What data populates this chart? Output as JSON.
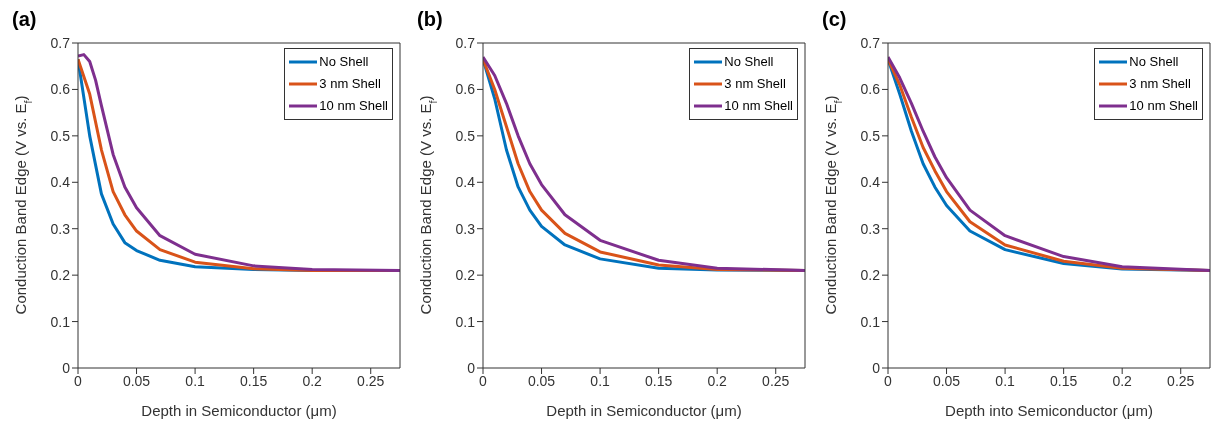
{
  "chart_data": [
    {
      "type": "line",
      "title": "(a)",
      "xlabel": "Depth in Semiconductor (μm)",
      "ylabel": "Conduction Band Edge (V vs. E$_{f}$)",
      "xlim": [
        0,
        0.275
      ],
      "ylim": [
        0,
        0.7
      ],
      "xticks": [
        0,
        0.05,
        0.1,
        0.15,
        0.2,
        0.25
      ],
      "yticks": [
        0,
        0.1,
        0.2,
        0.3,
        0.4,
        0.5,
        0.6,
        0.7
      ],
      "grid": false,
      "legend": "top right",
      "marker": "none",
      "line_style": "solid",
      "series": [
        {
          "name": "No Shell",
          "color": "#0072bd",
          "x": [
            0,
            0.01,
            0.02,
            0.03,
            0.04,
            0.05,
            0.07,
            0.1,
            0.15,
            0.2,
            0.275
          ],
          "values": [
            0.665,
            0.5,
            0.375,
            0.31,
            0.27,
            0.253,
            0.232,
            0.218,
            0.212,
            0.21,
            0.21
          ]
        },
        {
          "name": "3 nm Shell",
          "color": "#d95319",
          "x": [
            0,
            0.01,
            0.02,
            0.03,
            0.04,
            0.05,
            0.07,
            0.1,
            0.15,
            0.2,
            0.275
          ],
          "values": [
            0.665,
            0.59,
            0.47,
            0.38,
            0.33,
            0.295,
            0.255,
            0.228,
            0.214,
            0.21,
            0.21
          ]
        },
        {
          "name": "10 nm Shell",
          "color": "#7e2f8e",
          "x": [
            0,
            0.005,
            0.01,
            0.015,
            0.02,
            0.03,
            0.04,
            0.05,
            0.07,
            0.1,
            0.15,
            0.2,
            0.275
          ],
          "values": [
            0.672,
            0.675,
            0.66,
            0.62,
            0.565,
            0.46,
            0.39,
            0.345,
            0.285,
            0.245,
            0.22,
            0.212,
            0.21
          ]
        }
      ]
    },
    {
      "type": "line",
      "title": "(b)",
      "xlabel": "Depth in Semiconductor (μm)",
      "ylabel": "Conduction Band Edge (V vs. E$_{f}$)",
      "xlim": [
        0,
        0.275
      ],
      "ylim": [
        0,
        0.7
      ],
      "xticks": [
        0,
        0.05,
        0.1,
        0.15,
        0.2,
        0.25
      ],
      "yticks": [
        0,
        0.1,
        0.2,
        0.3,
        0.4,
        0.5,
        0.6,
        0.7
      ],
      "grid": false,
      "legend": "top right",
      "marker": "none",
      "line_style": "solid",
      "series": [
        {
          "name": "No Shell",
          "color": "#0072bd",
          "x": [
            0,
            0.01,
            0.02,
            0.03,
            0.04,
            0.05,
            0.07,
            0.1,
            0.15,
            0.2,
            0.275
          ],
          "values": [
            0.665,
            0.58,
            0.47,
            0.39,
            0.34,
            0.305,
            0.265,
            0.235,
            0.215,
            0.211,
            0.21
          ]
        },
        {
          "name": "3 nm Shell",
          "color": "#d95319",
          "x": [
            0,
            0.01,
            0.02,
            0.03,
            0.04,
            0.05,
            0.07,
            0.1,
            0.15,
            0.2,
            0.275
          ],
          "values": [
            0.665,
            0.6,
            0.52,
            0.44,
            0.38,
            0.34,
            0.29,
            0.25,
            0.222,
            0.212,
            0.21
          ]
        },
        {
          "name": "10 nm Shell",
          "color": "#7e2f8e",
          "x": [
            0,
            0.01,
            0.02,
            0.03,
            0.04,
            0.05,
            0.07,
            0.1,
            0.15,
            0.2,
            0.275
          ],
          "values": [
            0.67,
            0.63,
            0.57,
            0.5,
            0.44,
            0.395,
            0.33,
            0.275,
            0.232,
            0.215,
            0.21
          ]
        }
      ]
    },
    {
      "type": "line",
      "title": "(c)",
      "xlabel": "Depth into Semiconductor (μm)",
      "ylabel": "Conduction Band Edge (V vs. E$_{f}$)",
      "xlim": [
        0,
        0.275
      ],
      "ylim": [
        0,
        0.7
      ],
      "xticks": [
        0,
        0.05,
        0.1,
        0.15,
        0.2,
        0.25
      ],
      "yticks": [
        0,
        0.1,
        0.2,
        0.3,
        0.4,
        0.5,
        0.6,
        0.7
      ],
      "grid": false,
      "legend": "top right",
      "marker": "none",
      "line_style": "solid",
      "series": [
        {
          "name": "No Shell",
          "color": "#0072bd",
          "x": [
            0,
            0.01,
            0.02,
            0.03,
            0.04,
            0.05,
            0.07,
            0.1,
            0.15,
            0.2,
            0.275
          ],
          "values": [
            0.665,
            0.59,
            0.51,
            0.44,
            0.39,
            0.35,
            0.295,
            0.255,
            0.225,
            0.213,
            0.21
          ]
        },
        {
          "name": "3 nm Shell",
          "color": "#d95319",
          "x": [
            0,
            0.01,
            0.02,
            0.03,
            0.04,
            0.05,
            0.07,
            0.1,
            0.15,
            0.2,
            0.275
          ],
          "values": [
            0.665,
            0.61,
            0.54,
            0.475,
            0.425,
            0.38,
            0.315,
            0.265,
            0.23,
            0.215,
            0.21
          ]
        },
        {
          "name": "10 nm Shell",
          "color": "#7e2f8e",
          "x": [
            0,
            0.01,
            0.02,
            0.03,
            0.04,
            0.05,
            0.07,
            0.1,
            0.15,
            0.2,
            0.275
          ],
          "values": [
            0.67,
            0.625,
            0.57,
            0.51,
            0.455,
            0.41,
            0.34,
            0.285,
            0.24,
            0.218,
            0.21
          ]
        }
      ]
    }
  ]
}
